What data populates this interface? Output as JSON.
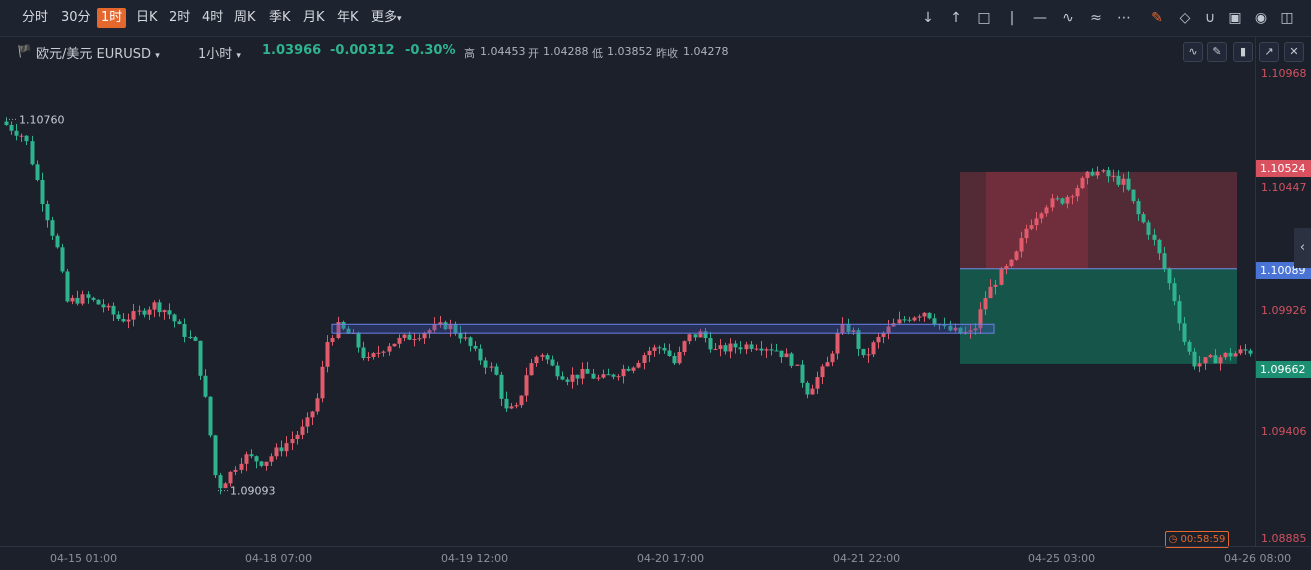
{
  "toolbar": {
    "timeframes": [
      "分时",
      "30分",
      "1时",
      "日K",
      "2时",
      "4时",
      "周K",
      "季K",
      "月K",
      "年K",
      "更多"
    ],
    "active_timeframe": "1时",
    "tools": [
      "arrow-down-icon",
      "arrow-up-icon",
      "rectangle-icon",
      "vertical-line-icon",
      "horizontal-line-icon",
      "trend-line-icon",
      "pattern-icon",
      "more-dots-icon",
      "draw-pen-icon",
      "eraser-icon",
      "magnet-icon",
      "lock-icon",
      "eye-icon",
      "trash-icon"
    ],
    "more_arrow": "▾"
  },
  "symbol": {
    "name": "欧元/美元 EURUSD",
    "interval": "1小时",
    "price": "1.03966",
    "change": "-0.00312",
    "change_pct": "-0.30%",
    "high_label": "高",
    "high": "1.04453",
    "open_label": "开",
    "open": "1.04288",
    "low_label": "低",
    "low": "1.03852",
    "prev_close_label": "昨收",
    "prev_close": "1.04278"
  },
  "price_axis": {
    "ticks": [
      "1.10968",
      "1.10447",
      "1.09926",
      "1.09406",
      "1.08885"
    ],
    "tags": [
      {
        "value": "1.10524",
        "color": "#d9505f"
      },
      {
        "value": "1.10089",
        "color": "#4a73d6"
      },
      {
        "value": "1.09662",
        "color": "#1c8f72"
      }
    ]
  },
  "time_axis": [
    "04-15 01:00",
    "04-18 07:00",
    "04-19 12:00",
    "04-20 17:00",
    "04-21 22:00",
    "04-25 03:00",
    "04-26 08:00"
  ],
  "annotations": {
    "high_marker": "1.10760",
    "low_marker": "1.09093",
    "countdown": "00:58:59"
  },
  "colors": {
    "up": "#e05c6c",
    "down": "#2fb38f",
    "background": "#1b202b",
    "accent": "#e4682e"
  }
}
